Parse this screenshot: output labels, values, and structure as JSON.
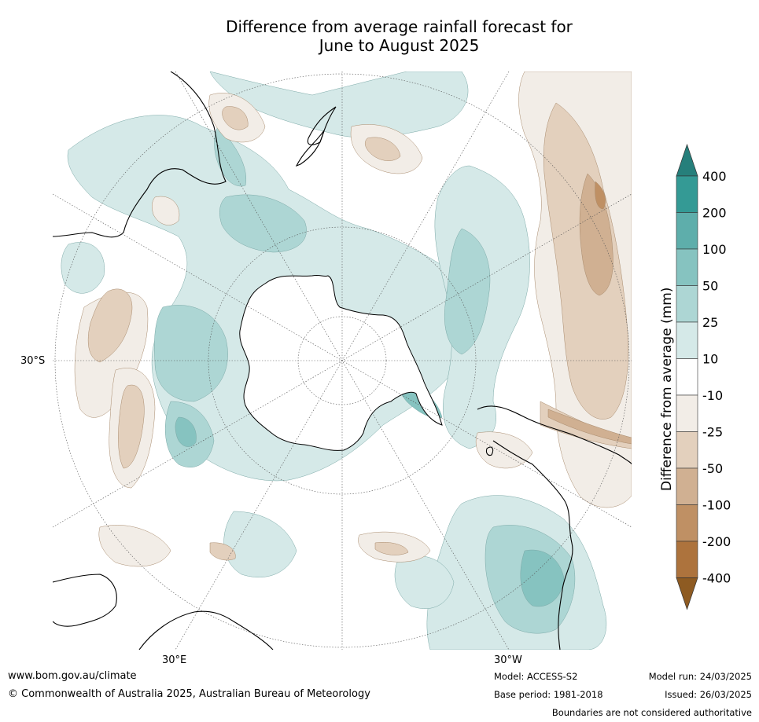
{
  "title": {
    "line1": "Difference from average rainfall forecast for",
    "line2": "June to August 2025"
  },
  "map": {
    "projection": "south-polar-stereographic",
    "labels": {
      "lat_30s": "30°S",
      "lon_30e": "30°E",
      "lon_30w": "30°W"
    }
  },
  "colorbar": {
    "title": "Difference from average (mm)",
    "tick_labels": [
      "400",
      "200",
      "100",
      "50",
      "25",
      "10",
      "-10",
      "-25",
      "-50",
      "-100",
      "-200",
      "-400"
    ],
    "classes": [
      {
        "range": ">400",
        "color": "#267f7b"
      },
      {
        "range": "200 to 400",
        "color": "#349a95"
      },
      {
        "range": "100 to 200",
        "color": "#5eaeab"
      },
      {
        "range": "50 to 100",
        "color": "#86c3c0"
      },
      {
        "range": "25 to 50",
        "color": "#add6d4"
      },
      {
        "range": "10 to 25",
        "color": "#d5e9e8"
      },
      {
        "range": "-10 to 10",
        "color": "#ffffff"
      },
      {
        "range": "-25 to -10",
        "color": "#f2ede7"
      },
      {
        "range": "-50 to -25",
        "color": "#e3d0bd"
      },
      {
        "range": "-100 to -50",
        "color": "#d0b092"
      },
      {
        "range": "-200 to -100",
        "color": "#bf9064"
      },
      {
        "range": "-400 to -200",
        "color": "#ad733d"
      },
      {
        "range": "<-400",
        "color": "#8e5b22"
      }
    ]
  },
  "footer": {
    "url": "www.bom.gov.au/climate",
    "copyright": "© Commonwealth of Australia 2025, Australian Bureau of Meteorology",
    "model": "Model: ACCESS-S2",
    "base_period": "Base period: 1981-2018",
    "model_run": "Model run: 24/03/2025",
    "issued": "Issued: 26/03/2025",
    "disclaimer": "Boundaries are not considered authoritative"
  }
}
